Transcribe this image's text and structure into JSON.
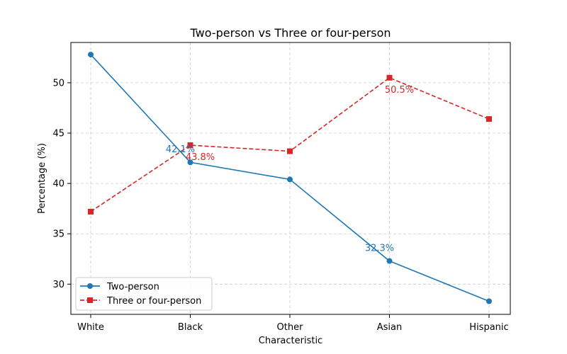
{
  "chart_data": {
    "type": "line",
    "title": "Two-person vs Three or four-person",
    "xlabel": "Characteristic",
    "ylabel": "Percentage (%)",
    "categories": [
      "White",
      "Black",
      "Other",
      "Asian",
      "Hispanic"
    ],
    "ylim": [
      27,
      54
    ],
    "yticks": [
      30,
      35,
      40,
      45,
      50
    ],
    "grid": true,
    "legend_position": "lower-left",
    "series": [
      {
        "name": "Two-person",
        "values": [
          52.8,
          42.1,
          40.4,
          32.3,
          28.3
        ],
        "color": "#1f77b4",
        "marker": "circle",
        "linestyle": "solid"
      },
      {
        "name": "Three or four-person",
        "values": [
          37.2,
          43.8,
          43.2,
          50.5,
          46.4
        ],
        "color": "#d62728",
        "marker": "square",
        "linestyle": "dashed"
      }
    ],
    "annotations": [
      {
        "series": 0,
        "index": 1,
        "text": "42.1%"
      },
      {
        "series": 0,
        "index": 3,
        "text": "32.3%"
      },
      {
        "series": 1,
        "index": 1,
        "text": "43.8%"
      },
      {
        "series": 1,
        "index": 3,
        "text": "50.5%"
      }
    ]
  }
}
